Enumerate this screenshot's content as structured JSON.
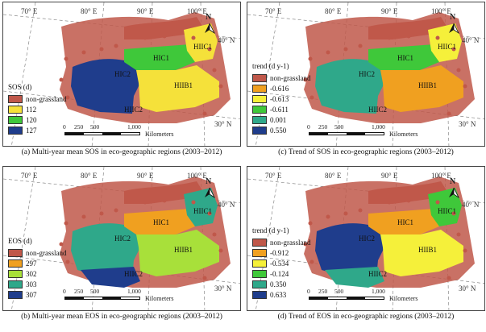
{
  "panels": [
    {
      "id": "a",
      "caption": "(a) Multi-year  mean SOS in eco-geographic regions (2003–2012)",
      "legend_title": "SOS (d)",
      "legend": [
        {
          "label": "non-grassland",
          "color": "#c0584a"
        },
        {
          "label": "112",
          "color": "#f5e13a"
        },
        {
          "label": "120",
          "color": "#3fc83a"
        },
        {
          "label": "127",
          "color": "#1f3d8c"
        }
      ],
      "region_colors": {
        "HIIC1": "#f5e13a",
        "HIC1": "#3fc83a",
        "HIIB1": "#f5e13a",
        "HIC2": "#1f3d8c"
      }
    },
    {
      "id": "c",
      "caption": "(c) Trend of SOS in eco-geographic regions (2003–2012)",
      "legend_title": "trend (d y-1)",
      "legend": [
        {
          "label": "non-grassland",
          "color": "#c0584a"
        },
        {
          "label": "-0.616",
          "color": "#f0a020"
        },
        {
          "label": "-0.613",
          "color": "#f5f03a"
        },
        {
          "label": "-0.611",
          "color": "#3fc83a"
        },
        {
          "label": "0.001",
          "color": "#2fa88a"
        },
        {
          "label": "0.550",
          "color": "#1f3d8c"
        }
      ],
      "region_colors": {
        "HIIC1": "#f5f03a",
        "HIC1": "#3fc83a",
        "HIIB1": "#f0a020",
        "HIC2": "#2fa88a"
      }
    },
    {
      "id": "b",
      "caption": "(b) Multi-year mean EOS in eco-geographic regions (2003–2012)",
      "legend_title": "EOS (d)",
      "legend": [
        {
          "label": "non-grassland",
          "color": "#c0584a"
        },
        {
          "label": "297",
          "color": "#f0a020"
        },
        {
          "label": "302",
          "color": "#a8e03a"
        },
        {
          "label": "303",
          "color": "#2fa88a"
        },
        {
          "label": "307",
          "color": "#1f3d8c"
        }
      ],
      "region_colors": {
        "HIIC1": "#2fa88a",
        "HIC1": "#f0a020",
        "HIIB1": "#a8e03a",
        "HIC2": "#2fa88a",
        "HIIC2": "#1f3d8c"
      }
    },
    {
      "id": "d",
      "caption": "(d) Trend of EOS in eco-geographic regions (2003–2012)",
      "legend_title": "trend (d y-1)",
      "legend": [
        {
          "label": "non-grassland",
          "color": "#c0584a"
        },
        {
          "label": "-0.912",
          "color": "#f0a020"
        },
        {
          "label": "-0.534",
          "color": "#f5f03a"
        },
        {
          "label": "-0.124",
          "color": "#3fc83a"
        },
        {
          "label": "0.350",
          "color": "#2fa88a"
        },
        {
          "label": "0.633",
          "color": "#1f3d8c"
        }
      ],
      "region_colors": {
        "HIIC1": "#3fc83a",
        "HIC1": "#f0a020",
        "HIIB1": "#f5f03a",
        "HIC2": "#1f3d8c",
        "HIIC2": "#2fa88a"
      }
    }
  ],
  "graticule": {
    "lon_70": "70° E",
    "lon_80": "80° E",
    "lon_90": "90° E",
    "lon_100": "100° E",
    "lat_40": "40° N",
    "lat_30": "30° N"
  },
  "region_labels": {
    "HIIC1": "HIIC1",
    "HIC1": "HIC1",
    "HIIB1": "HIIB1",
    "HIC2": "HIC2",
    "HIIC2": "HIIC2"
  },
  "north_label": "N",
  "scale": {
    "ticks": [
      "0",
      "250",
      "500",
      "1,000"
    ],
    "unit": "Kilometers"
  }
}
